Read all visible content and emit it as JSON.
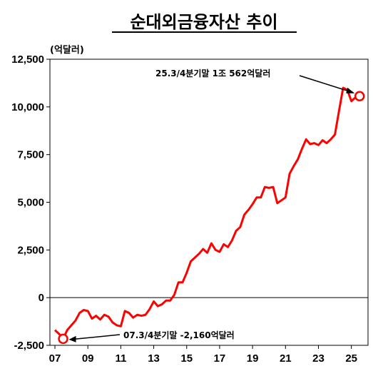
{
  "chart_data": {
    "type": "line",
    "title": "순대외금융자산 추이",
    "unit_label": "(억달러)",
    "xlabel": "",
    "ylabel": "",
    "x_ticks": [
      "07",
      "09",
      "11",
      "13",
      "15",
      "17",
      "19",
      "21",
      "23",
      "25"
    ],
    "y_ticks": [
      "12,500",
      "10,000",
      "7,500",
      "5,000",
      "2,500",
      "0",
      "-2,500"
    ],
    "ylim": [
      -2500,
      12500
    ],
    "xlim": [
      2007.0,
      2025.75
    ],
    "grid": false,
    "series": [
      {
        "color": "#ff0000",
        "x": [
          2007.0,
          2007.25,
          2007.5,
          2007.75,
          2008.0,
          2008.25,
          2008.5,
          2008.75,
          2009.0,
          2009.25,
          2009.5,
          2009.75,
          2010.0,
          2010.25,
          2010.5,
          2010.75,
          2011.0,
          2011.25,
          2011.5,
          2011.75,
          2012.0,
          2012.25,
          2012.5,
          2012.75,
          2013.0,
          2013.25,
          2013.5,
          2013.75,
          2014.0,
          2014.25,
          2014.5,
          2014.75,
          2015.0,
          2015.25,
          2015.5,
          2015.75,
          2016.0,
          2016.25,
          2016.5,
          2016.75,
          2017.0,
          2017.25,
          2017.5,
          2017.75,
          2018.0,
          2018.25,
          2018.5,
          2018.75,
          2019.0,
          2019.25,
          2019.5,
          2019.75,
          2020.0,
          2020.25,
          2020.5,
          2020.75,
          2021.0,
          2021.25,
          2021.5,
          2021.75,
          2022.0,
          2022.25,
          2022.5,
          2022.75,
          2023.0,
          2023.25,
          2023.5,
          2023.75,
          2024.0,
          2024.25,
          2024.5,
          2024.75,
          2025.0,
          2025.25,
          2025.5
        ],
        "values": [
          -1700,
          -1900,
          -2160,
          -1700,
          -1450,
          -1200,
          -800,
          -650,
          -700,
          -1100,
          -950,
          -1150,
          -900,
          -1000,
          -1300,
          -1450,
          -1500,
          -700,
          -800,
          -1050,
          -900,
          -950,
          -900,
          -600,
          -200,
          -450,
          -350,
          -150,
          -150,
          150,
          800,
          800,
          1300,
          1900,
          2100,
          2300,
          2550,
          2350,
          2850,
          2500,
          2400,
          2800,
          2650,
          3000,
          3500,
          3700,
          4350,
          4600,
          4900,
          5250,
          5250,
          5800,
          5750,
          5800,
          4950,
          5100,
          5250,
          6500,
          6900,
          7250,
          7800,
          8300,
          8050,
          8100,
          8000,
          8250,
          8100,
          8300,
          8550,
          9800,
          11000,
          10900,
          10300,
          10500,
          10562
        ]
      }
    ],
    "annotations": [
      {
        "text": "25.3/4분기말 1조 562억달러",
        "x": 2025.5,
        "y": 10562
      },
      {
        "text": "07.3/4분기말 -2,160억달러",
        "x": 2007.5,
        "y": -2160
      }
    ]
  }
}
